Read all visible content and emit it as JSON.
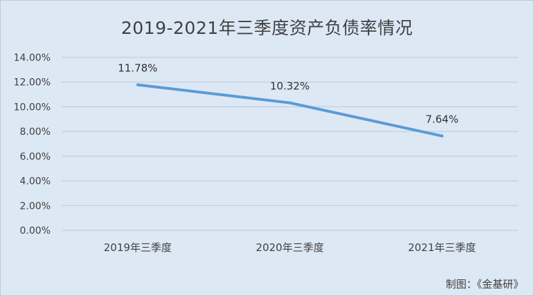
{
  "chart_data": {
    "type": "line",
    "title": "2019-2021年三季度资产负债率情况",
    "categories": [
      "2019年三季度",
      "2020年三季度",
      "2021年三季度"
    ],
    "series": [
      {
        "values": [
          11.78,
          10.32,
          7.64
        ],
        "data_labels": [
          "11.78%",
          "10.32%",
          "7.64%"
        ]
      }
    ],
    "ylim": [
      0,
      14
    ],
    "yticks": [
      0,
      2,
      4,
      6,
      8,
      10,
      12,
      14
    ],
    "ytick_labels": [
      "0.00%",
      "2.00%",
      "4.00%",
      "6.00%",
      "8.00%",
      "10.00%",
      "12.00%",
      "14.00%"
    ],
    "xlabel": "",
    "ylabel": "",
    "grid": true,
    "legend": "none",
    "colors": {
      "line": "#5b9bd5",
      "grid": "#b7c9de",
      "background": "#dde8f5"
    }
  },
  "footer": {
    "source": "制图：《金基研》"
  }
}
